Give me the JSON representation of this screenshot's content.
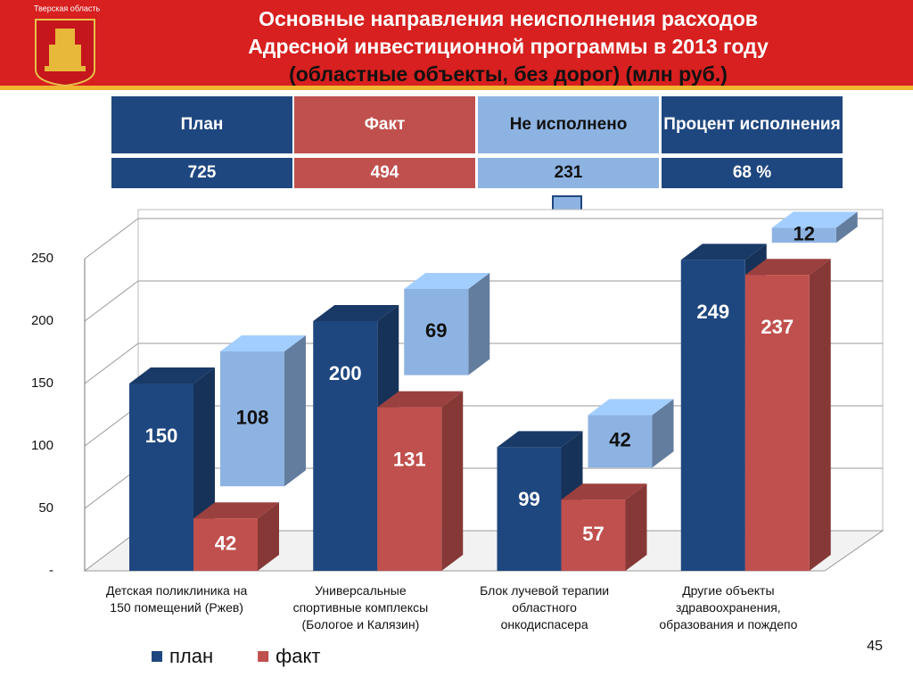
{
  "header": {
    "region": "Тверская область",
    "title": [
      "Основные направления неисполнения расходов",
      "Адресной инвестиционной программы в 2013 году",
      "(областные объекты, без дорог) (млн руб.)"
    ]
  },
  "table": {
    "header": [
      "План",
      "Факт",
      "Не исполнено",
      "Процент исполнения"
    ],
    "rows": [
      [
        "725",
        "494",
        "231",
        "68 %"
      ]
    ]
  },
  "chart_data": {
    "type": "bar",
    "categories": [
      "Детская поликлиника на\n150 помещений (Ржев)",
      "Универсальные\nспортивные комплексы\n(Бологое и Калязин)",
      "Блок лучевой терапии\nобластного\nонкодиспасера",
      "Другие объекты\nздравоохранения,\nобразования и пождепо"
    ],
    "series": [
      {
        "name": "план",
        "color": "#1f477f",
        "values": [
          150,
          200,
          99,
          249
        ]
      },
      {
        "name": "факт",
        "color": "#c0504d",
        "values": [
          42,
          131,
          57,
          237
        ]
      },
      {
        "color": "#8db3e2",
        "stacked": true,
        "values": [
          108,
          69,
          42,
          12
        ]
      }
    ],
    "ylim": [
      0,
      250
    ],
    "yticks": [
      {
        "value": 0,
        "label": "-"
      },
      50,
      100,
      150,
      200,
      250
    ],
    "grid": true
  },
  "page_number": "45"
}
